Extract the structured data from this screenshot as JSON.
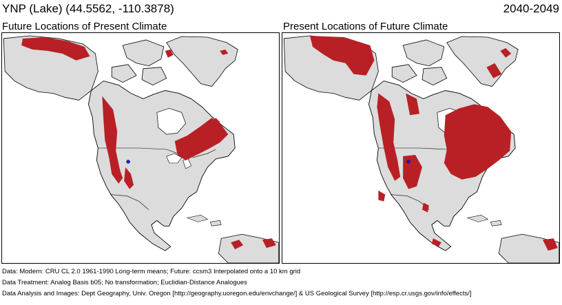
{
  "header": {
    "site_label": "YNP (Lake)  (44.5562, -110.3878)",
    "period": "2040-2049"
  },
  "panels": [
    {
      "title": "Future Locations of Present Climate"
    },
    {
      "title": "Present Locations of Future Climate"
    }
  ],
  "footer": {
    "line1": "Data:  Modern: CRU CL 2.0 1961-1990 Long-term means; Future: ccsm3 Interpolated onto a 10 km grid",
    "line2": "Data Treatment:  Analog Basis b05; No transformation; Euclidian-Distance Analogues",
    "line3": "Data Analysis and Images:  Dept Geography, Univ. Oregon [http://geography.uoregon.edu/envchange/] & US Geological Survey [http://esp.cr.usgs.gov/info/effects/]"
  },
  "colors": {
    "analog": "#b82025",
    "land": "#dcdcdc",
    "site_marker": "#1a1aff"
  }
}
